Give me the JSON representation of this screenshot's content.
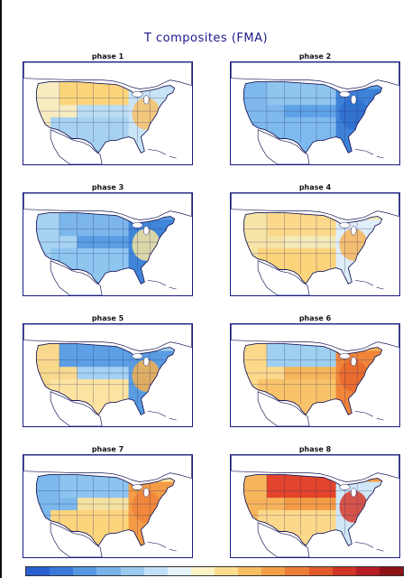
{
  "figure": {
    "title": "T composites (FMA)"
  },
  "panels": [
    {
      "label": "phase 1",
      "pattern": {
        "north": "#fcd57a",
        "west": "#f6ecc0",
        "central": "#bcdcf2",
        "south": "#a7d1f0",
        "east": "#c9e5f5",
        "hot": "#f8c267"
      }
    },
    {
      "label": "phase 2",
      "pattern": {
        "north": "#8fc6ef",
        "west": "#7fb8ec",
        "central": "#5ea3e6",
        "south": "#7fbaee",
        "east": "#3e82d8",
        "hot": "#2f6fcf"
      }
    },
    {
      "label": "phase 3",
      "pattern": {
        "north": "#7cb6ec",
        "west": "#a7d3f3",
        "central": "#5a9ee4",
        "south": "#8ec6f0",
        "east": "#3f86da",
        "hot": "#f4e4a0"
      }
    },
    {
      "label": "phase 4",
      "pattern": {
        "north": "#fcd98a",
        "west": "#f6e4a6",
        "central": "#f4eab8",
        "south": "#fbd47c",
        "east": "#dfeef8",
        "hot": "#f7b55b"
      }
    },
    {
      "label": "phase 5",
      "pattern": {
        "north": "#5c9fe4",
        "west": "#f8d98e",
        "central": "#a5d1f2",
        "south": "#fde3a1",
        "east": "#5a9ce2",
        "hot": "#f6b24e"
      }
    },
    {
      "label": "phase 6",
      "pattern": {
        "north": "#9fd0f2",
        "west": "#fcd98a",
        "central": "#f7b55b",
        "south": "#f9c469",
        "east": "#f0853a",
        "hot": "#e8692d"
      }
    },
    {
      "label": "phase 7",
      "pattern": {
        "north": "#8cc4ef",
        "west": "#7cb8ec",
        "central": "#f6e2a0",
        "south": "#fbd47c",
        "east": "#f49c45",
        "hot": "#ee8438"
      }
    },
    {
      "label": "phase 8",
      "pattern": {
        "north": "#e2452b",
        "west": "#f7b55b",
        "central": "#f49c45",
        "south": "#fcd98a",
        "east": "#cfe7f6",
        "hot": "#d63a2a"
      }
    }
  ],
  "colorbar": {
    "colors": [
      "#2860d0",
      "#3a78da",
      "#5698e2",
      "#78b2ea",
      "#9bcbf1",
      "#bfe0f6",
      "#e5f3fa",
      "#fbf2c6",
      "#fbdd8d",
      "#f7be62",
      "#f39f46",
      "#ec7c34",
      "#e1592a",
      "#cf3526",
      "#b51d24",
      "#8f1217"
    ]
  }
}
